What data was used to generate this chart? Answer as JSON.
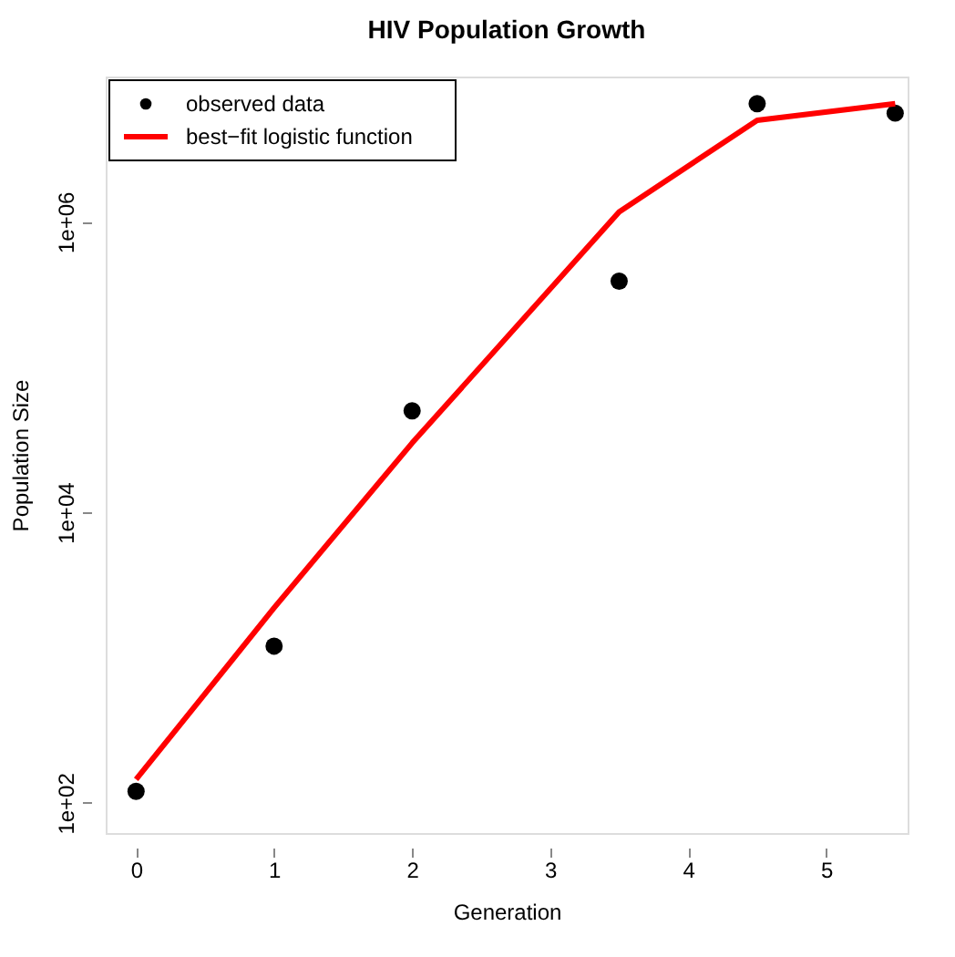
{
  "chart_data": {
    "type": "scatter",
    "title": "HIV Population Growth",
    "xlabel": "Generation",
    "ylabel": "Population Size",
    "x": [
      0,
      1,
      2,
      3.5,
      4.5,
      5.5
    ],
    "series": [
      {
        "name": "observed data",
        "color": "#000000",
        "marker": "circle",
        "values": [
          120,
          1200,
          50000,
          390000,
          6500000,
          5600000
        ]
      },
      {
        "name": "best−fit logistic function",
        "type": "line",
        "color": "#ff0000",
        "values": [
          145,
          2200,
          30000,
          1170000,
          5000000,
          6500000
        ]
      }
    ],
    "log": "y",
    "xlim": [
      -0.22,
      5.59
    ],
    "ylim": [
      62,
      10000000
    ],
    "xticks": [
      0,
      1,
      2,
      3,
      4,
      5
    ],
    "yticks": [
      {
        "value": 100,
        "label": "1e+02"
      },
      {
        "value": 10000,
        "label": "1e+04"
      },
      {
        "value": 1000000,
        "label": "1e+06"
      }
    ],
    "grid": false,
    "legend": "top left"
  }
}
